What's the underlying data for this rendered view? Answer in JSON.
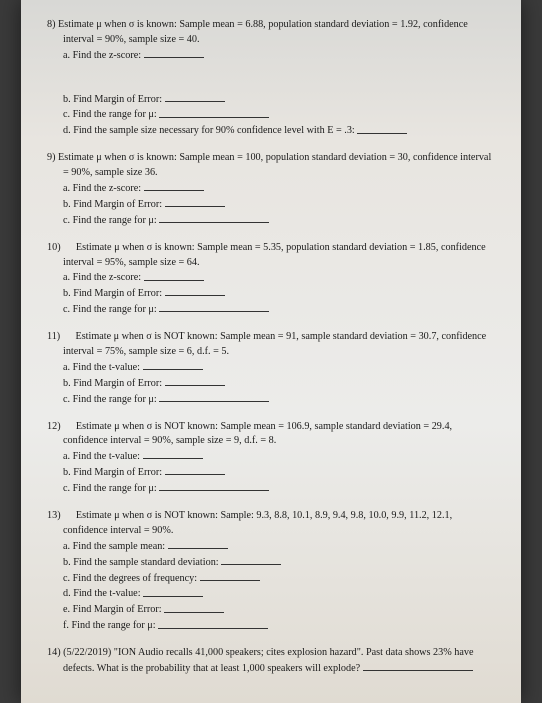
{
  "q8": {
    "num": "8)",
    "stem": "Estimate μ when σ is known: Sample mean = 6.88, population standard deviation = 1.92, confidence interval = 90%, sample size = 40.",
    "a": "a.  Find the z-score:",
    "b": "b.  Find Margin of Error:",
    "c": "c.  Find the range for μ:",
    "d": "d.  Find the sample size necessary for 90% confidence level with E = .3:"
  },
  "q9": {
    "num": "9)",
    "stem": "Estimate μ when σ is known: Sample mean = 100, population standard deviation = 30, confidence interval = 90%, sample size 36.",
    "a": "a.  Find the z-score:",
    "b": "b.  Find Margin of Error:",
    "c": "c.  Find the range for μ:"
  },
  "q10": {
    "num": "10)",
    "stem": "Estimate μ when σ is known: Sample mean = 5.35, population standard deviation = 1.85, confidence interval = 95%, sample size = 64.",
    "a": "a.  Find the z-score:",
    "b": "b.  Find Margin of Error:",
    "c": "c.  Find the range for μ:"
  },
  "q11": {
    "num": "11)",
    "stem": "Estimate μ when σ is NOT known: Sample mean = 91, sample standard deviation = 30.7, confidence interval = 75%, sample size = 6, d.f. = 5.",
    "a": "a.  Find the t-value:",
    "b": "b.  Find Margin of Error:",
    "c": "c.  Find the range for μ:"
  },
  "q12": {
    "num": "12)",
    "stem": "Estimate μ when σ is NOT known: Sample mean = 106.9, sample standard deviation = 29.4, confidence interval = 90%, sample size = 9, d.f. = 8.",
    "a": "a.  Find the t-value:",
    "b": "b.  Find Margin of Error:",
    "c": "c.  Find the range for μ:"
  },
  "q13": {
    "num": "13)",
    "stem": "Estimate μ when σ is NOT known: Sample: 9.3, 8.8, 10.1, 8.9, 9.4, 9.8, 10.0, 9.9, 11.2, 12.1, confidence interval = 90%.",
    "a": "a.  Find the sample mean:",
    "b": "b.  Find the sample standard deviation:",
    "c": "c.  Find the degrees of frequency:",
    "d": "d.  Find the t-value:",
    "e": "e.  Find Margin of Error:",
    "f": "f.  Find the range for μ:"
  },
  "q14": {
    "num": "14)",
    "date": "(5/22/2019)",
    "stem": "\"ION Audio recalls 41,000 speakers; cites explosion hazard\". Past data shows 23% have defects. What is the probability that at least 1,000 speakers will explode?"
  }
}
